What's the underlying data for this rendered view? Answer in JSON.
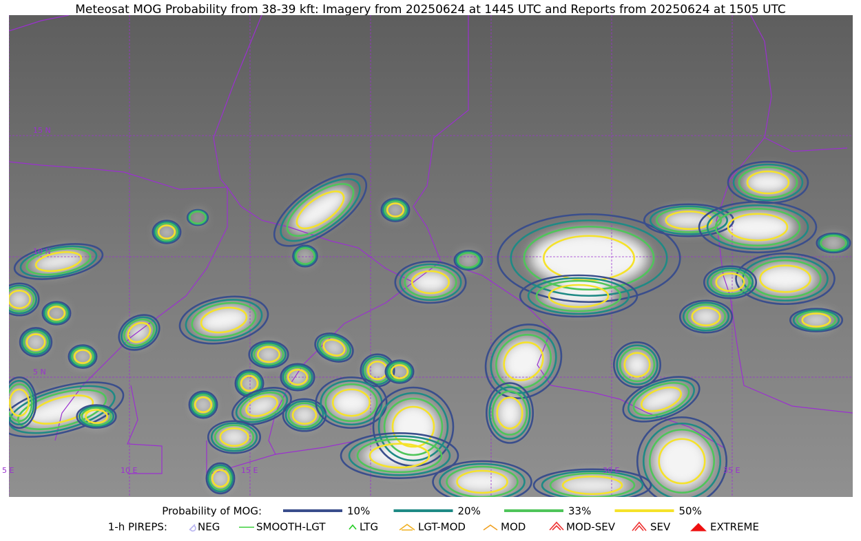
{
  "title": "Meteosat MOG Probability from 38-39 kft: Imagery from 20250624 at 1445 UTC and Reports from 20250624 at 1505 UTC",
  "map": {
    "lat_labels": [
      "15 N",
      "10 N",
      "5 N"
    ],
    "lon_labels": [
      "5 E",
      "10 E",
      "15 E",
      "30 E",
      "35 E"
    ]
  },
  "legend": {
    "probability": {
      "label": "Probability of MOG:",
      "items": [
        {
          "label": "10%",
          "color": "#3a4e8c"
        },
        {
          "label": "20%",
          "color": "#1f8a85"
        },
        {
          "label": "33%",
          "color": "#4fc55a"
        },
        {
          "label": "50%",
          "color": "#f5e22a"
        }
      ]
    },
    "pireps": {
      "label": "1-h PIREPS:",
      "items": [
        {
          "label": "NEG",
          "color": "#b8b4f0"
        },
        {
          "label": "SMOOTH-LGT",
          "color": "#3ccf3c"
        },
        {
          "label": "LTG",
          "color": "#22cc22"
        },
        {
          "label": "LGT-MOD",
          "color": "#f0b020"
        },
        {
          "label": "MOD",
          "color": "#f0a020"
        },
        {
          "label": "MOD-SEV",
          "color": "#ee3030"
        },
        {
          "label": "SEV",
          "color": "#ee3030"
        },
        {
          "label": "EXTREME",
          "color": "#ee1010"
        }
      ]
    }
  }
}
